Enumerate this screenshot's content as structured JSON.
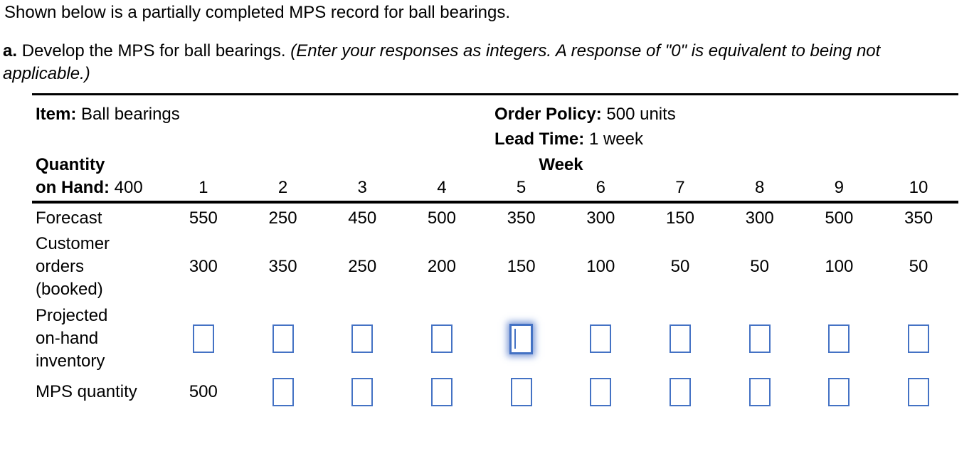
{
  "intro": "Shown below is a partially completed MPS record for ball bearings.",
  "part_a": {
    "label": "a.",
    "text": "Develop the MPS for ball bearings.",
    "note_line1": "(Enter your responses as integers. A response of \"0\" is equivalent to being not",
    "note_line2": "applicable.)"
  },
  "record": {
    "item_label": "Item:",
    "item_value": "Ball bearings",
    "order_policy_label": "Order Policy:",
    "order_policy_value": "500 units",
    "lead_time_label": "Lead Time:",
    "lead_time_value": "1 week",
    "quantity_label_line1": "Quantity",
    "quantity_label_line2": "on Hand:",
    "quantity_on_hand": "400",
    "week_header": "Week",
    "weeks": [
      "1",
      "2",
      "3",
      "4",
      "5",
      "6",
      "7",
      "8",
      "9",
      "10"
    ],
    "rows": {
      "forecast": {
        "label": "Forecast",
        "values": [
          "550",
          "250",
          "450",
          "500",
          "350",
          "300",
          "150",
          "300",
          "500",
          "350"
        ]
      },
      "customer_orders": {
        "label_lines": [
          "Customer",
          "orders",
          "(booked)"
        ],
        "values": [
          "300",
          "350",
          "250",
          "200",
          "150",
          "100",
          "50",
          "50",
          "100",
          "50"
        ]
      },
      "projected_inventory": {
        "label_lines": [
          "Projected",
          "on-hand",
          "inventory"
        ],
        "inputs": [
          "",
          "",
          "",
          "",
          "",
          "",
          "",
          "",
          "",
          ""
        ],
        "focused_week": "5"
      },
      "mps_quantity": {
        "label": "MPS quantity",
        "week1_value": "500",
        "inputs": [
          "",
          "",
          "",
          "",
          "",
          "",
          "",
          "",
          ""
        ]
      }
    }
  },
  "colors": {
    "input_border": "#4472C4",
    "focus_glow": "rgba(79,118,200,0.75)",
    "text": "#000000"
  }
}
